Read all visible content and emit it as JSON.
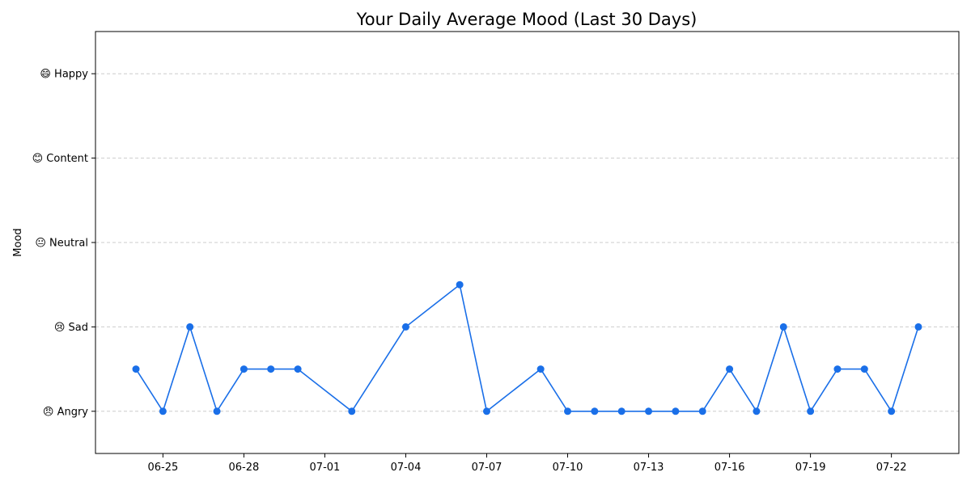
{
  "chart_data": {
    "type": "line",
    "title": "Your Daily Average Mood (Last 30 Days)",
    "xlabel": "",
    "ylabel": "Mood",
    "ylim": [
      -0.5,
      4.5
    ],
    "grid": "horizontal dashed",
    "y_ticks": [
      {
        "value": 0,
        "label": "😠 Angry"
      },
      {
        "value": 1,
        "label": "😢 Sad"
      },
      {
        "value": 2,
        "label": "😐 Neutral"
      },
      {
        "value": 3,
        "label": "😊 Content"
      },
      {
        "value": 4,
        "label": "😄 Happy"
      }
    ],
    "x_range": [
      "2024-06-22T12:00",
      "2024-07-24T12:00"
    ],
    "x_ticks": [
      {
        "date": "2024-06-25",
        "label": "06-25"
      },
      {
        "date": "2024-06-28",
        "label": "06-28"
      },
      {
        "date": "2024-07-01",
        "label": "07-01"
      },
      {
        "date": "2024-07-04",
        "label": "07-04"
      },
      {
        "date": "2024-07-07",
        "label": "07-07"
      },
      {
        "date": "2024-07-10",
        "label": "07-10"
      },
      {
        "date": "2024-07-13",
        "label": "07-13"
      },
      {
        "date": "2024-07-16",
        "label": "07-16"
      },
      {
        "date": "2024-07-19",
        "label": "07-19"
      },
      {
        "date": "2024-07-22",
        "label": "07-22"
      }
    ],
    "series": [
      {
        "color": "#1a6fe8",
        "points": [
          {
            "x": "2024-06-24",
            "y": 0.5
          },
          {
            "x": "2024-06-25",
            "y": 0
          },
          {
            "x": "2024-06-26",
            "y": 1
          },
          {
            "x": "2024-06-27",
            "y": 0
          },
          {
            "x": "2024-06-28",
            "y": 0.5
          },
          {
            "x": "2024-06-29",
            "y": 0.5
          },
          {
            "x": "2024-06-30",
            "y": 0.5
          },
          {
            "x": "2024-07-02",
            "y": 0
          },
          {
            "x": "2024-07-04",
            "y": 1
          },
          {
            "x": "2024-07-06",
            "y": 1.5
          },
          {
            "x": "2024-07-07",
            "y": 0
          },
          {
            "x": "2024-07-09",
            "y": 0.5
          },
          {
            "x": "2024-07-10",
            "y": 0
          },
          {
            "x": "2024-07-11",
            "y": 0
          },
          {
            "x": "2024-07-12",
            "y": 0
          },
          {
            "x": "2024-07-13",
            "y": 0
          },
          {
            "x": "2024-07-14",
            "y": 0
          },
          {
            "x": "2024-07-15",
            "y": 0
          },
          {
            "x": "2024-07-16",
            "y": 0.5
          },
          {
            "x": "2024-07-17",
            "y": 0
          },
          {
            "x": "2024-07-18",
            "y": 1
          },
          {
            "x": "2024-07-19",
            "y": 0
          },
          {
            "x": "2024-07-20",
            "y": 0.5
          },
          {
            "x": "2024-07-21",
            "y": 0.5
          },
          {
            "x": "2024-07-22",
            "y": 0
          },
          {
            "x": "2024-07-23",
            "y": 1
          }
        ]
      }
    ]
  }
}
